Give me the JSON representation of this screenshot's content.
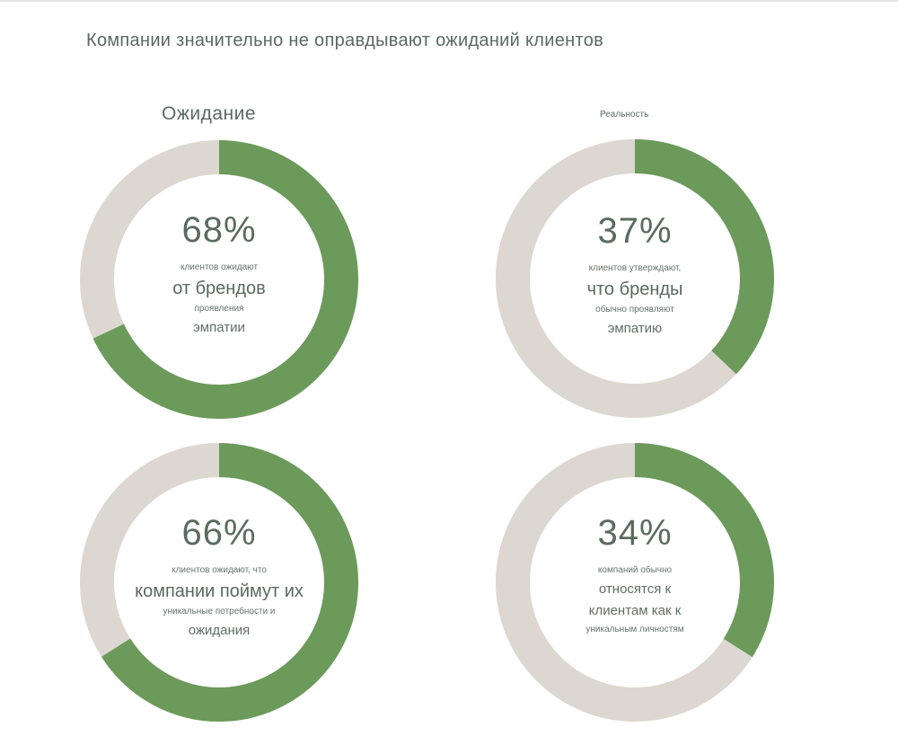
{
  "title": "Компании значительно не оправдывают ожиданий клиентов",
  "colors": {
    "filled": "#6b9a5b",
    "remaining": "#dcd7d1",
    "text": "#5d6a62"
  },
  "chart_data": {
    "type": "donut",
    "title": "Компании значительно не оправдывают ожиданий клиентов",
    "columns": [
      "Ожидание",
      "Реальность"
    ],
    "charts": [
      {
        "column": "Ожидание",
        "value": 68,
        "label": "68%",
        "lines": [
          "клиентов ожидают",
          "от брендов",
          "проявления",
          "эмпатии"
        ]
      },
      {
        "column": "Реальность",
        "value": 37,
        "label": "37%",
        "lines": [
          "клиентов утверждают,",
          "что бренды",
          "обычно проявляют",
          "эмпатию"
        ]
      },
      {
        "column": "Ожидание",
        "value": 66,
        "label": "66%",
        "lines": [
          "клиентов ожидают, что",
          "компании поймут их",
          "уникальные потребности и",
          "ожидания"
        ]
      },
      {
        "column": "Реальность",
        "value": 34,
        "label": "34%",
        "lines": [
          "компаний обычно",
          "относятся к",
          "клиентам как к",
          "уникальным личностям"
        ]
      }
    ]
  }
}
